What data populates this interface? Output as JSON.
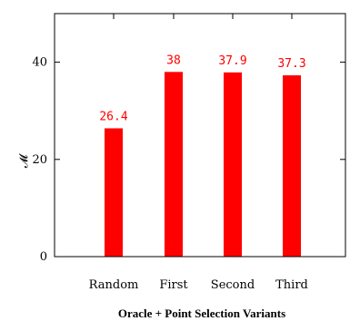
{
  "chart_data": {
    "type": "bar",
    "categories": [
      "Random",
      "First",
      "Second",
      "Third"
    ],
    "values": [
      26.4,
      38,
      37.9,
      37.3
    ],
    "data_labels": [
      "26.4",
      "38",
      "37.9",
      "37.3"
    ],
    "title": "",
    "xlabel": "Oracle + Point Selection Variants",
    "ylabel": "𝓜",
    "ylim": [
      0,
      50
    ],
    "yticks": [
      0,
      20,
      40
    ],
    "ytick_labels": [
      "0",
      "20",
      "40"
    ],
    "grid": false,
    "bar_color": "#ff0000",
    "label_color": "#ff0000"
  }
}
